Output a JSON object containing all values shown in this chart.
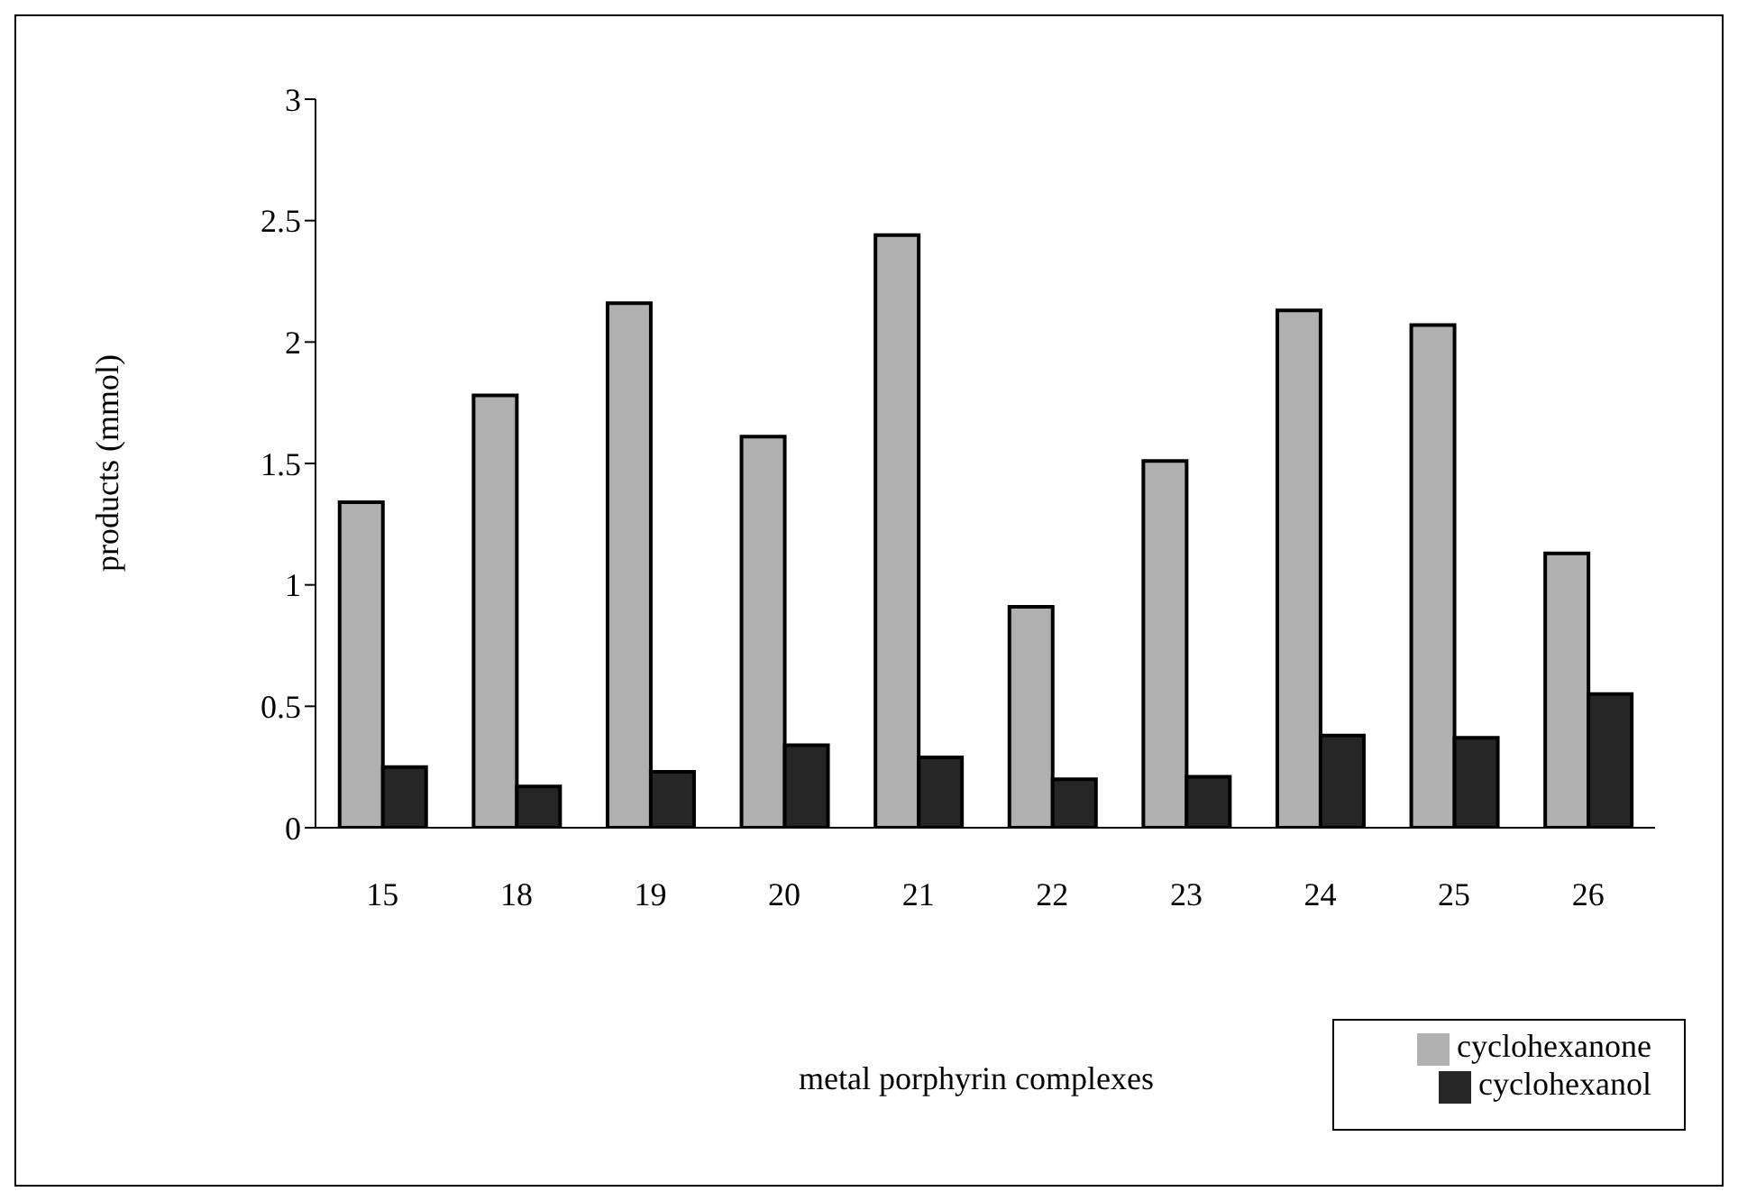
{
  "chart_data": {
    "type": "bar",
    "xlabel": "metal porphyrin complexes",
    "ylabel": "products (mmol)",
    "categories": [
      "15",
      "18",
      "19",
      "20",
      "21",
      "22",
      "23",
      "24",
      "25",
      "26"
    ],
    "series": [
      {
        "name": "cyclohexanone",
        "color": "#b0b0b0",
        "values": [
          1.34,
          1.78,
          2.16,
          1.61,
          2.44,
          0.91,
          1.51,
          2.13,
          2.07,
          1.13
        ]
      },
      {
        "name": "cyclohexanol",
        "color": "#262626",
        "values": [
          0.25,
          0.17,
          0.23,
          0.34,
          0.29,
          0.2,
          0.21,
          0.38,
          0.37,
          0.55
        ]
      }
    ],
    "ylim": [
      0,
      3
    ],
    "yticks": [
      0,
      0.5,
      1,
      1.5,
      2,
      2.5,
      3
    ],
    "grid": false,
    "legend": "bottom right"
  }
}
